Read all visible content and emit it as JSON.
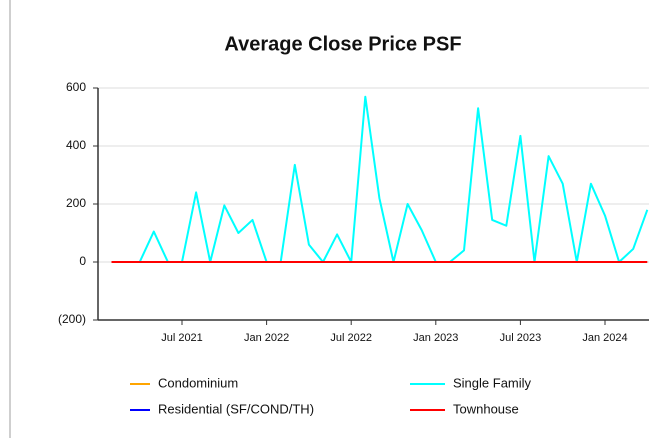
{
  "chart_data": {
    "type": "line",
    "title": "Average Close Price PSF",
    "categories": [
      null,
      null,
      null,
      null,
      null,
      "Jul 2021",
      null,
      null,
      null,
      null,
      null,
      "Jan 2022",
      null,
      null,
      null,
      null,
      null,
      "Jul 2022",
      null,
      null,
      null,
      null,
      null,
      "Jan 2023",
      null,
      null,
      null,
      null,
      null,
      "Jul 2023",
      null,
      null,
      null,
      null,
      null,
      "Jan 2024",
      null,
      null,
      null
    ],
    "series": [
      {
        "name": "Condominium",
        "color": "#ffa500",
        "values": [
          null,
          null,
          null,
          null,
          null,
          null,
          null,
          null,
          null,
          null,
          null,
          null,
          null,
          null,
          null,
          null,
          null,
          null,
          null,
          null,
          null,
          null,
          null,
          null,
          null,
          null,
          null,
          null,
          null,
          null,
          null,
          null,
          null,
          null,
          null,
          null,
          null,
          null,
          null
        ]
      },
      {
        "name": "Single Family",
        "color": "#00ffff",
        "values": [
          null,
          null,
          0,
          105,
          0,
          0,
          240,
          0,
          195,
          100,
          145,
          0,
          0,
          335,
          60,
          0,
          95,
          0,
          570,
          220,
          0,
          200,
          110,
          0,
          0,
          40,
          530,
          145,
          125,
          435,
          0,
          365,
          270,
          0,
          270,
          160,
          0,
          45,
          180
        ]
      },
      {
        "name": "Residential (SF/COND/TH)",
        "color": "#0000ff",
        "values": [
          null,
          null,
          null,
          null,
          null,
          null,
          null,
          null,
          null,
          null,
          null,
          null,
          null,
          null,
          null,
          null,
          null,
          null,
          null,
          null,
          null,
          null,
          null,
          null,
          null,
          null,
          null,
          null,
          null,
          null,
          null,
          null,
          null,
          null,
          null,
          null,
          null,
          null,
          null
        ]
      },
      {
        "name": "Townhouse",
        "color": "#ff0000",
        "values": [
          0,
          0,
          0,
          0,
          0,
          0,
          0,
          0,
          0,
          0,
          0,
          0,
          0,
          0,
          0,
          0,
          0,
          0,
          0,
          0,
          0,
          0,
          0,
          0,
          0,
          0,
          0,
          0,
          0,
          0,
          0,
          0,
          0,
          0,
          0,
          0,
          0,
          0,
          0
        ]
      }
    ],
    "ylim": [
      -200,
      600
    ],
    "yticks": [
      {
        "value": -200,
        "label": "(200)"
      },
      0,
      200,
      400,
      600
    ],
    "grid": true
  }
}
